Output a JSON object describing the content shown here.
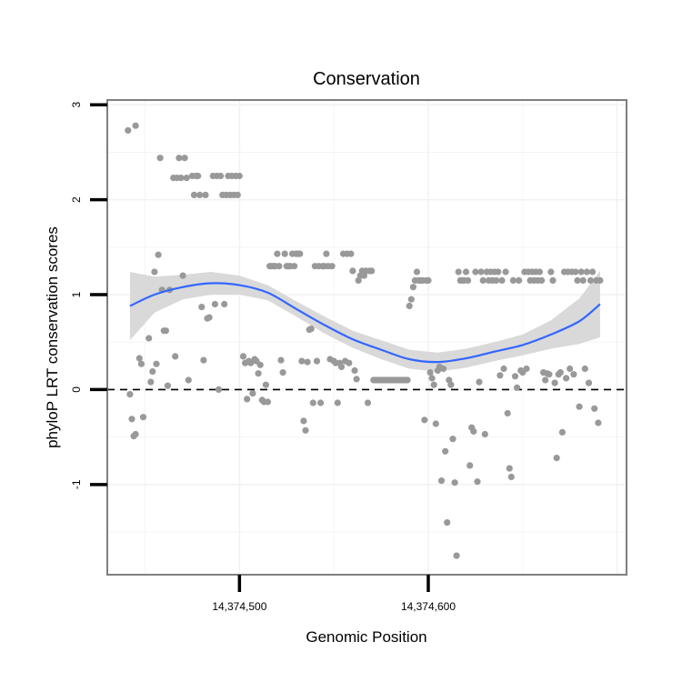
{
  "chart_data": {
    "type": "scatter",
    "title": "Conservation",
    "xlabel": "Genomic Position",
    "ylabel": "phyloP LRT conservation scores",
    "xlim": [
      14374430,
      14374705
    ],
    "ylim": [
      -1.95,
      3.05
    ],
    "x_ticks": [
      {
        "value": 14374500,
        "label": "14,374,500"
      },
      {
        "value": 14374600,
        "label": "14,374,600"
      }
    ],
    "y_ticks": [
      {
        "value": -1,
        "label": "-1"
      },
      {
        "value": 0,
        "label": "0"
      },
      {
        "value": 1,
        "label": "1"
      },
      {
        "value": 2,
        "label": "2"
      },
      {
        "value": 3,
        "label": "3"
      }
    ],
    "reference_line": {
      "y": 0,
      "style": "dashed"
    },
    "point_color": "#999999",
    "smooth_color": "#3366ff",
    "band_color": "#d9d9d9",
    "points": [
      [
        14374441,
        2.73
      ],
      [
        14374445,
        2.78
      ],
      [
        14374442,
        -0.05
      ],
      [
        14374443,
        -0.31
      ],
      [
        14374444,
        -0.49
      ],
      [
        14374445,
        -0.47
      ],
      [
        14374447,
        0.33
      ],
      [
        14374448,
        0.27
      ],
      [
        14374449,
        -0.29
      ],
      [
        14374452,
        0.54
      ],
      [
        14374453,
        0.08
      ],
      [
        14374454,
        0.19
      ],
      [
        14374455,
        1.24
      ],
      [
        14374456,
        0.27
      ],
      [
        14374457,
        1.42
      ],
      [
        14374458,
        2.44
      ],
      [
        14374459,
        1.05
      ],
      [
        14374460,
        0.62
      ],
      [
        14374461,
        0.62
      ],
      [
        14374462,
        0.04
      ],
      [
        14374463,
        1.05
      ],
      [
        14374465,
        2.23
      ],
      [
        14374466,
        0.35
      ],
      [
        14374467,
        2.23
      ],
      [
        14374468,
        2.44
      ],
      [
        14374469,
        2.23
      ],
      [
        14374470,
        1.2
      ],
      [
        14374471,
        2.44
      ],
      [
        14374472,
        2.23
      ],
      [
        14374473,
        0.1
      ],
      [
        14374475,
        2.25
      ],
      [
        14374476,
        2.05
      ],
      [
        14374477,
        2.25
      ],
      [
        14374478,
        2.25
      ],
      [
        14374479,
        2.05
      ],
      [
        14374480,
        0.87
      ],
      [
        14374481,
        0.31
      ],
      [
        14374482,
        2.05
      ],
      [
        14374483,
        0.75
      ],
      [
        14374484,
        0.76
      ],
      [
        14374486,
        2.25
      ],
      [
        14374487,
        0.9
      ],
      [
        14374488,
        2.25
      ],
      [
        14374489,
        0.0
      ],
      [
        14374490,
        2.25
      ],
      [
        14374491,
        2.05
      ],
      [
        14374492,
        0.9
      ],
      [
        14374493,
        2.05
      ],
      [
        14374494,
        2.25
      ],
      [
        14374495,
        2.05
      ],
      [
        14374496,
        2.25
      ],
      [
        14374497,
        2.05
      ],
      [
        14374498,
        2.25
      ],
      [
        14374499,
        2.05
      ],
      [
        14374500,
        2.25
      ],
      [
        14374502,
        0.35
      ],
      [
        14374503,
        0.28
      ],
      [
        14374504,
        -0.1
      ],
      [
        14374505,
        0.3
      ],
      [
        14374506,
        0.28
      ],
      [
        14374507,
        -0.04
      ],
      [
        14374508,
        0.32
      ],
      [
        14374509,
        0.3
      ],
      [
        14374510,
        0.17
      ],
      [
        14374511,
        0.26
      ],
      [
        14374512,
        -0.11
      ],
      [
        14374513,
        -0.13
      ],
      [
        14374514,
        0.05
      ],
      [
        14374515,
        -0.13
      ],
      [
        14374516,
        1.3
      ],
      [
        14374517,
        1.3
      ],
      [
        14374518,
        1.3
      ],
      [
        14374519,
        1.3
      ],
      [
        14374520,
        1.43
      ],
      [
        14374521,
        1.3
      ],
      [
        14374522,
        0.31
      ],
      [
        14374523,
        0.18
      ],
      [
        14374524,
        1.43
      ],
      [
        14374525,
        1.3
      ],
      [
        14374526,
        1.3
      ],
      [
        14374527,
        1.3
      ],
      [
        14374528,
        1.43
      ],
      [
        14374529,
        1.3
      ],
      [
        14374530,
        1.43
      ],
      [
        14374531,
        1.43
      ],
      [
        14374532,
        1.43
      ],
      [
        14374533,
        0.3
      ],
      [
        14374534,
        -0.33
      ],
      [
        14374535,
        -0.43
      ],
      [
        14374536,
        0.29
      ],
      [
        14374537,
        0.63
      ],
      [
        14374538,
        0.64
      ],
      [
        14374539,
        -0.14
      ],
      [
        14374540,
        1.3
      ],
      [
        14374541,
        0.3
      ],
      [
        14374542,
        1.3
      ],
      [
        14374543,
        -0.14
      ],
      [
        14374544,
        1.3
      ],
      [
        14374545,
        1.3
      ],
      [
        14374546,
        1.43
      ],
      [
        14374547,
        1.3
      ],
      [
        14374548,
        0.32
      ],
      [
        14374549,
        1.3
      ],
      [
        14374550,
        0.3
      ],
      [
        14374551,
        0.28
      ],
      [
        14374552,
        -0.14
      ],
      [
        14374553,
        0.28
      ],
      [
        14374554,
        0.24
      ],
      [
        14374555,
        1.43
      ],
      [
        14374556,
        0.3
      ],
      [
        14374557,
        1.43
      ],
      [
        14374558,
        0.28
      ],
      [
        14374559,
        1.43
      ],
      [
        14374560,
        1.25
      ],
      [
        14374561,
        0.2
      ],
      [
        14374562,
        0.11
      ],
      [
        14374563,
        1.15
      ],
      [
        14374564,
        1.2
      ],
      [
        14374565,
        1.25
      ],
      [
        14374566,
        1.2
      ],
      [
        14374567,
        1.25
      ],
      [
        14374568,
        -0.14
      ],
      [
        14374569,
        1.25
      ],
      [
        14374570,
        1.25
      ],
      [
        14374571,
        0.1
      ],
      [
        14374572,
        0.1
      ],
      [
        14374573,
        0.1
      ],
      [
        14374574,
        0.1
      ],
      [
        14374575,
        0.1
      ],
      [
        14374576,
        0.1
      ],
      [
        14374577,
        0.1
      ],
      [
        14374578,
        0.1
      ],
      [
        14374579,
        0.1
      ],
      [
        14374580,
        0.1
      ],
      [
        14374581,
        0.1
      ],
      [
        14374582,
        0.1
      ],
      [
        14374583,
        0.1
      ],
      [
        14374584,
        0.1
      ],
      [
        14374585,
        0.1
      ],
      [
        14374586,
        0.1
      ],
      [
        14374587,
        0.1
      ],
      [
        14374588,
        0.1
      ],
      [
        14374589,
        0.1
      ],
      [
        14374590,
        0.88
      ],
      [
        14374591,
        0.95
      ],
      [
        14374592,
        1.08
      ],
      [
        14374593,
        1.15
      ],
      [
        14374594,
        1.24
      ],
      [
        14374595,
        1.15
      ],
      [
        14374596,
        1.15
      ],
      [
        14374597,
        1.15
      ],
      [
        14374598,
        -0.32
      ],
      [
        14374599,
        1.15
      ],
      [
        14374600,
        1.15
      ],
      [
        14374601,
        0.18
      ],
      [
        14374602,
        0.12
      ],
      [
        14374603,
        0.05
      ],
      [
        14374604,
        -0.36
      ],
      [
        14374605,
        0.2
      ],
      [
        14374606,
        0.24
      ],
      [
        14374607,
        -0.96
      ],
      [
        14374608,
        0.22
      ],
      [
        14374609,
        -0.65
      ],
      [
        14374610,
        -1.4
      ],
      [
        14374611,
        0.1
      ],
      [
        14374612,
        0.05
      ],
      [
        14374613,
        -0.52
      ],
      [
        14374614,
        -0.98
      ],
      [
        14374615,
        -1.75
      ],
      [
        14374616,
        1.24
      ],
      [
        14374617,
        1.15
      ],
      [
        14374618,
        1.15
      ],
      [
        14374619,
        1.15
      ],
      [
        14374620,
        1.24
      ],
      [
        14374621,
        1.15
      ],
      [
        14374622,
        -0.8
      ],
      [
        14374623,
        -0.4
      ],
      [
        14374624,
        -0.44
      ],
      [
        14374625,
        1.24
      ],
      [
        14374626,
        -0.97
      ],
      [
        14374627,
        0.08
      ],
      [
        14374628,
        1.24
      ],
      [
        14374629,
        1.15
      ],
      [
        14374630,
        -0.47
      ],
      [
        14374631,
        1.24
      ],
      [
        14374632,
        1.15
      ],
      [
        14374633,
        1.24
      ],
      [
        14374634,
        1.15
      ],
      [
        14374635,
        1.24
      ],
      [
        14374636,
        1.15
      ],
      [
        14374637,
        1.24
      ],
      [
        14374638,
        0.15
      ],
      [
        14374639,
        1.15
      ],
      [
        14374640,
        0.22
      ],
      [
        14374641,
        1.24
      ],
      [
        14374642,
        -0.25
      ],
      [
        14374643,
        -0.83
      ],
      [
        14374644,
        -0.92
      ],
      [
        14374645,
        1.15
      ],
      [
        14374646,
        0.14
      ],
      [
        14374647,
        0.02
      ],
      [
        14374648,
        1.15
      ],
      [
        14374649,
        0.2
      ],
      [
        14374650,
        0.18
      ],
      [
        14374651,
        1.24
      ],
      [
        14374652,
        0.22
      ],
      [
        14374653,
        1.24
      ],
      [
        14374654,
        1.15
      ],
      [
        14374655,
        1.24
      ],
      [
        14374656,
        1.15
      ],
      [
        14374657,
        1.24
      ],
      [
        14374658,
        1.15
      ],
      [
        14374659,
        1.24
      ],
      [
        14374660,
        1.15
      ],
      [
        14374661,
        0.18
      ],
      [
        14374662,
        0.1
      ],
      [
        14374663,
        0.17
      ],
      [
        14374664,
        0.16
      ],
      [
        14374665,
        1.24
      ],
      [
        14374666,
        1.15
      ],
      [
        14374667,
        0.07
      ],
      [
        14374668,
        -0.72
      ],
      [
        14374669,
        0.16
      ],
      [
        14374670,
        0.18
      ],
      [
        14374671,
        -0.45
      ],
      [
        14374672,
        1.24
      ],
      [
        14374673,
        0.12
      ],
      [
        14374674,
        1.24
      ],
      [
        14374675,
        0.22
      ],
      [
        14374676,
        1.24
      ],
      [
        14374677,
        0.16
      ],
      [
        14374678,
        1.24
      ],
      [
        14374679,
        1.15
      ],
      [
        14374680,
        -0.18
      ],
      [
        14374681,
        1.24
      ],
      [
        14374682,
        1.15
      ],
      [
        14374683,
        0.22
      ],
      [
        14374684,
        1.24
      ],
      [
        14374685,
        0.07
      ],
      [
        14374686,
        1.15
      ],
      [
        14374687,
        1.24
      ],
      [
        14374688,
        -0.2
      ],
      [
        14374689,
        1.15
      ],
      [
        14374690,
        -0.35
      ],
      [
        14374691,
        1.15
      ]
    ],
    "smooth": [
      [
        14374442,
        0.88
      ],
      [
        14374455,
        1.0
      ],
      [
        14374470,
        1.08
      ],
      [
        14374485,
        1.12
      ],
      [
        14374500,
        1.1
      ],
      [
        14374515,
        1.02
      ],
      [
        14374530,
        0.85
      ],
      [
        14374545,
        0.68
      ],
      [
        14374560,
        0.53
      ],
      [
        14374575,
        0.42
      ],
      [
        14374590,
        0.32
      ],
      [
        14374605,
        0.29
      ],
      [
        14374620,
        0.33
      ],
      [
        14374635,
        0.4
      ],
      [
        14374650,
        0.47
      ],
      [
        14374665,
        0.58
      ],
      [
        14374680,
        0.72
      ],
      [
        14374691,
        0.9
      ]
    ],
    "band_upper": [
      [
        14374442,
        1.24
      ],
      [
        14374455,
        1.19
      ],
      [
        14374470,
        1.21
      ],
      [
        14374485,
        1.24
      ],
      [
        14374500,
        1.2
      ],
      [
        14374515,
        1.1
      ],
      [
        14374530,
        0.93
      ],
      [
        14374545,
        0.77
      ],
      [
        14374560,
        0.62
      ],
      [
        14374575,
        0.52
      ],
      [
        14374590,
        0.42
      ],
      [
        14374605,
        0.39
      ],
      [
        14374620,
        0.43
      ],
      [
        14374635,
        0.5
      ],
      [
        14374650,
        0.58
      ],
      [
        14374665,
        0.73
      ],
      [
        14374680,
        0.96
      ],
      [
        14374691,
        1.25
      ]
    ],
    "band_lower": [
      [
        14374442,
        0.52
      ],
      [
        14374455,
        0.81
      ],
      [
        14374470,
        0.95
      ],
      [
        14374485,
        1.0
      ],
      [
        14374500,
        1.0
      ],
      [
        14374515,
        0.94
      ],
      [
        14374530,
        0.77
      ],
      [
        14374545,
        0.59
      ],
      [
        14374560,
        0.44
      ],
      [
        14374575,
        0.32
      ],
      [
        14374590,
        0.22
      ],
      [
        14374605,
        0.19
      ],
      [
        14374620,
        0.23
      ],
      [
        14374635,
        0.3
      ],
      [
        14374650,
        0.36
      ],
      [
        14374665,
        0.43
      ],
      [
        14374680,
        0.48
      ],
      [
        14374691,
        0.55
      ]
    ]
  }
}
